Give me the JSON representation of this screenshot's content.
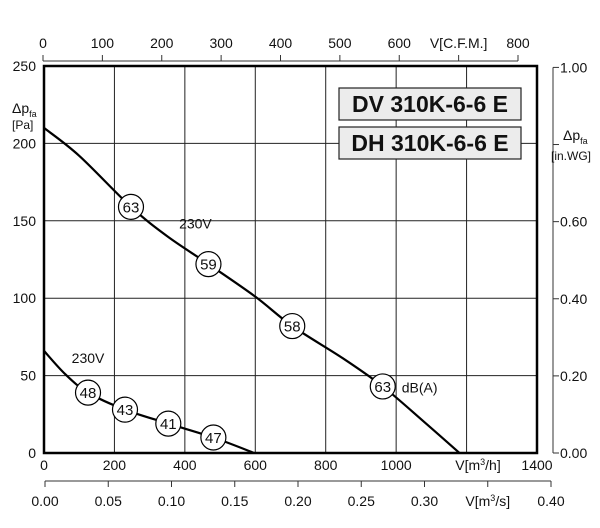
{
  "chart_data": {
    "type": "line",
    "models": [
      "DV 310K-6-6 E",
      "DH 310K-6-6 E"
    ],
    "x_axis": {
      "label": "V[m³/h]",
      "label_main": "V[m",
      "label_sup": "3",
      "label_end": "/h]",
      "range": [
        0,
        1400
      ],
      "ticks": [
        0,
        200,
        400,
        600,
        800,
        1000,
        1400
      ],
      "tick_labels": [
        "0",
        "200",
        "400",
        "600",
        "800",
        "1000",
        "1400"
      ]
    },
    "x_axis_top": {
      "label": "V[C.F.M.]",
      "range": [
        0,
        800
      ],
      "ticks": [
        0,
        100,
        200,
        300,
        400,
        500,
        600,
        800
      ],
      "tick_labels": [
        "0",
        "100",
        "200",
        "300",
        "400",
        "500",
        "600",
        "800"
      ]
    },
    "x_axis_bottom": {
      "label": "V[m³/s]",
      "label_main": "V[m",
      "label_sup": "3",
      "label_end": "/s]",
      "range": [
        0,
        0.4
      ],
      "ticks": [
        0,
        0.05,
        0.1,
        0.15,
        0.2,
        0.25,
        0.3,
        0.4
      ],
      "tick_labels": [
        "0.00",
        "0.05",
        "0.10",
        "0.15",
        "0.20",
        "0.25",
        "0.30",
        "0.40"
      ]
    },
    "y_axis": {
      "label_main": "Δp",
      "label_sub": "fa",
      "unit": "[Pa]",
      "range": [
        0,
        250
      ],
      "ticks": [
        0,
        50,
        100,
        150,
        200,
        250
      ],
      "tick_labels": [
        "0",
        "50",
        "100",
        "150",
        "200",
        "250"
      ]
    },
    "y_axis_right": {
      "label_main": "Δp",
      "label_sub": "fa",
      "unit": "[in.WG]",
      "range": [
        0,
        1.0
      ],
      "ticks": [
        0,
        0.2,
        0.4,
        0.6,
        1.0
      ],
      "tick_labels": [
        "0.00",
        "0.20",
        "0.40",
        "0.60",
        "1.00"
      ]
    },
    "grid": true,
    "series": [
      {
        "name": "230V",
        "label_at": [
          430,
          145
        ],
        "points": [
          [
            0,
            210
          ],
          [
            100,
            192
          ],
          [
            247,
            159
          ],
          [
            350,
            140
          ],
          [
            467,
            122
          ],
          [
            600,
            101
          ],
          [
            705,
            82
          ],
          [
            850,
            61
          ],
          [
            962,
            43
          ],
          [
            1080,
            20
          ],
          [
            1180,
            0
          ]
        ],
        "noise_markers": [
          {
            "x": 247,
            "y": 159,
            "db": "63"
          },
          {
            "x": 467,
            "y": 122,
            "db": "59"
          },
          {
            "x": 705,
            "y": 82,
            "db": "58"
          },
          {
            "x": 962,
            "y": 43,
            "db": "63"
          }
        ]
      },
      {
        "name": "230V",
        "label_at": [
          125,
          58
        ],
        "points": [
          [
            0,
            66
          ],
          [
            60,
            51
          ],
          [
            125,
            39
          ],
          [
            230,
            28
          ],
          [
            353,
            19
          ],
          [
            481,
            10
          ],
          [
            597,
            0
          ]
        ],
        "noise_markers": [
          {
            "x": 125,
            "y": 39,
            "db": "48"
          },
          {
            "x": 230,
            "y": 28,
            "db": "43"
          },
          {
            "x": 353,
            "y": 19,
            "db": "41"
          },
          {
            "x": 481,
            "y": 10,
            "db": "47"
          }
        ]
      }
    ],
    "unit_annotation": "dB(A)"
  }
}
